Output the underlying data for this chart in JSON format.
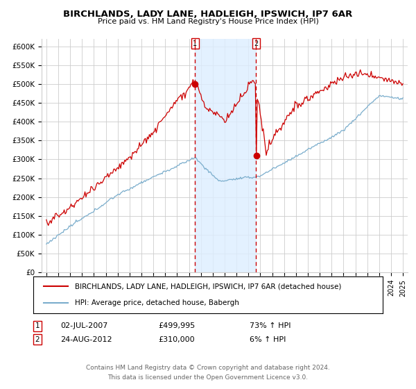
{
  "title": "BIRCHLANDS, LADY LANE, HADLEIGH, IPSWICH, IP7 6AR",
  "subtitle": "Price paid vs. HM Land Registry's House Price Index (HPI)",
  "ytick_labels": [
    "£0",
    "£50K",
    "£100K",
    "£150K",
    "£200K",
    "£250K",
    "£300K",
    "£350K",
    "£400K",
    "£450K",
    "£500K",
    "£550K",
    "£600K"
  ],
  "yticks": [
    0,
    50000,
    100000,
    150000,
    200000,
    250000,
    300000,
    350000,
    400000,
    450000,
    500000,
    550000,
    600000
  ],
  "legend_line1": "BIRCHLANDS, LADY LANE, HADLEIGH, IPSWICH, IP7 6AR (detached house)",
  "legend_line2": "HPI: Average price, detached house, Babergh",
  "sale1_date": "02-JUL-2007",
  "sale1_price": "£499,995",
  "sale1_hpi": "73% ↑ HPI",
  "sale2_date": "24-AUG-2012",
  "sale2_price": "£310,000",
  "sale2_hpi": "6% ↑ HPI",
  "footer1": "Contains HM Land Registry data © Crown copyright and database right 2024.",
  "footer2": "This data is licensed under the Open Government Licence v3.0.",
  "line_color_red": "#cc0000",
  "line_color_blue": "#7aadcc",
  "shade_color": "#ddeeff",
  "vline_color": "#cc0000",
  "box_color": "#cc0000",
  "background_color": "#ffffff",
  "grid_color": "#cccccc",
  "sale1_year": 2007.5,
  "sale2_year": 2012.65,
  "sale1_price_val": 499995,
  "sale2_price_val": 310000,
  "xlim_left": 1994.6,
  "xlim_right": 2025.4,
  "ylim_top": 620000
}
